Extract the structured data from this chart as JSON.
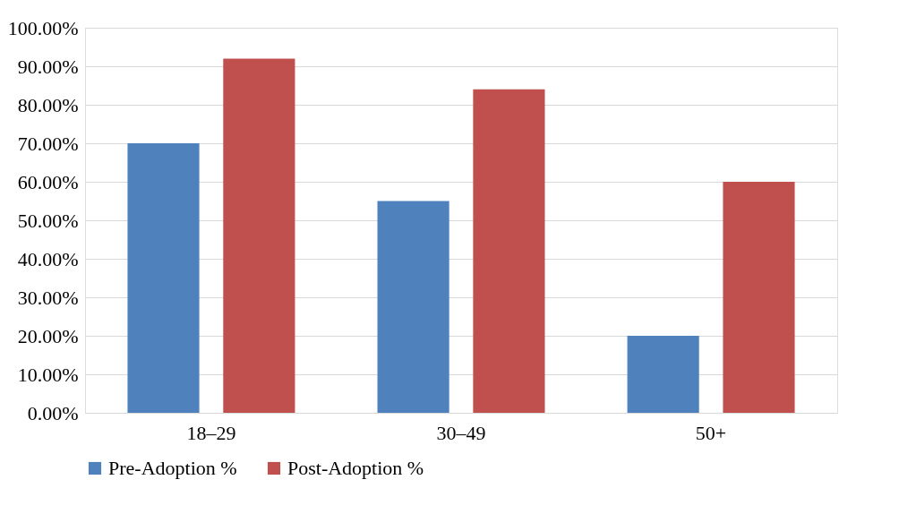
{
  "chart_data": {
    "type": "bar",
    "categories": [
      "18–29",
      "30–49",
      "50+"
    ],
    "series": [
      {
        "name": "Pre-Adoption %",
        "color": "#4f81bd",
        "values": [
          70,
          55,
          20
        ]
      },
      {
        "name": "Post-Adoption %",
        "color": "#c0504d",
        "values": [
          92,
          84,
          60
        ]
      }
    ],
    "ylim": [
      0,
      100
    ],
    "yticks": [
      {
        "value": 0,
        "label": "0.00%"
      },
      {
        "value": 10,
        "label": "10.00%"
      },
      {
        "value": 20,
        "label": "20.00%"
      },
      {
        "value": 30,
        "label": "30.00%"
      },
      {
        "value": 40,
        "label": "40.00%"
      },
      {
        "value": 50,
        "label": "50.00%"
      },
      {
        "value": 60,
        "label": "60.00%"
      },
      {
        "value": 70,
        "label": "70.00%"
      },
      {
        "value": 80,
        "label": "80.00%"
      },
      {
        "value": 90,
        "label": "90.00%"
      },
      {
        "value": 100,
        "label": "100.00%"
      }
    ],
    "grid": "y",
    "legend": "bottom"
  }
}
